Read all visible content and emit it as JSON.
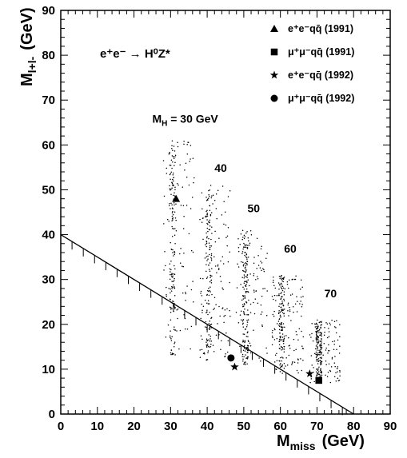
{
  "chart_data": {
    "type": "scatter",
    "title": "",
    "reaction_label": "e⁺e⁻ → H⁰Z*",
    "xlabel": "M_miss (GeV)",
    "xlabel_main": "M",
    "xlabel_sub": "miss",
    "xlabel_unit": "(GeV)",
    "ylabel": "M_l+l- (GeV)",
    "ylabel_main": "M",
    "ylabel_sub": "l+l-",
    "ylabel_unit": "(GeV)",
    "xlim": [
      0,
      90
    ],
    "ylim": [
      0,
      90
    ],
    "x_ticks": [
      "0",
      "10",
      "20",
      "30",
      "40",
      "50",
      "60",
      "70",
      "80",
      "90"
    ],
    "y_ticks": [
      "0",
      "10",
      "20",
      "30",
      "40",
      "50",
      "60",
      "70",
      "80",
      "90"
    ],
    "grid": false,
    "legend_position": "top-right",
    "mass_labels": [
      {
        "text": "M_H = 30 GeV",
        "main": "M",
        "sub": "H",
        "rest": " = 30 GeV",
        "x": 25,
        "y": 65
      },
      {
        "text": "40",
        "x": 42,
        "y": 54
      },
      {
        "text": "50",
        "x": 51,
        "y": 45
      },
      {
        "text": "60",
        "x": 61,
        "y": 36
      },
      {
        "text": "70",
        "x": 72,
        "y": 26
      }
    ],
    "simulated_clusters": [
      {
        "mass_label": "30",
        "x_center": 30.5,
        "y_min": 13,
        "y_max": 61
      },
      {
        "mass_label": "40",
        "x_center": 40.5,
        "y_min": 12,
        "y_max": 51
      },
      {
        "mass_label": "50",
        "x_center": 50.5,
        "y_min": 11,
        "y_max": 41
      },
      {
        "mass_label": "60",
        "x_center": 60.3,
        "y_min": 9,
        "y_max": 31
      },
      {
        "mass_label": "70",
        "x_center": 70.5,
        "y_min": 7,
        "y_max": 21
      }
    ],
    "cut_line": {
      "points": [
        [
          0,
          40
        ],
        [
          80,
          0
        ]
      ]
    },
    "series": [
      {
        "name": "e⁺e⁻qq̄ (1991)",
        "marker": "triangle",
        "points": [
          [
            31.5,
            48
          ]
        ]
      },
      {
        "name": "μ⁺μ⁻qq̄ (1991)",
        "marker": "square",
        "points": [
          [
            70.5,
            7.5
          ]
        ]
      },
      {
        "name": "e⁺e⁻qq̄ (1992)",
        "marker": "star",
        "points": [
          [
            47.5,
            10.5
          ],
          [
            68,
            9
          ]
        ]
      },
      {
        "name": "μ⁺μ⁻qq̄ (1992)",
        "marker": "circle",
        "points": [
          [
            46.5,
            12.5
          ]
        ]
      }
    ]
  }
}
